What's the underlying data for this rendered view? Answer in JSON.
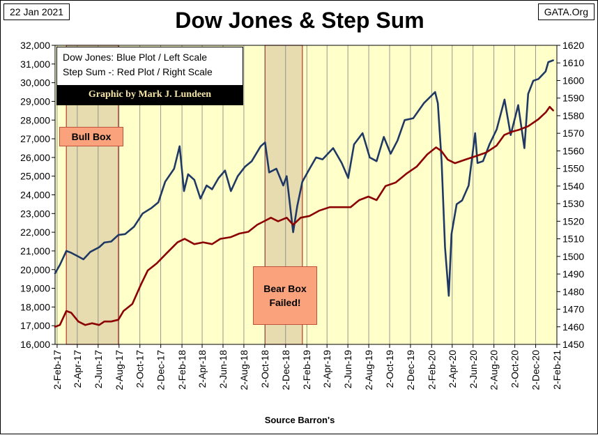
{
  "header": {
    "date": "22 Jan 2021",
    "site": "GATA.Org",
    "title": "Dow Jones & Step Sum"
  },
  "legend": {
    "line1": "Dow Jones: Blue Plot / Left Scale",
    "line2": "Step Sum -: Red Plot / Right Scale",
    "credit": "Graphic by Mark J. Lundeen"
  },
  "annotations": {
    "bull_box": "Bull Box",
    "bear_box_line1": "Bear Box",
    "bear_box_line2": "Failed!"
  },
  "footer": {
    "source": "Source Barron's"
  },
  "colors": {
    "plot_bg": "#ffffc9",
    "box_shade": "#e6dcb0",
    "box_border": "#b53a2a",
    "dow_line": "#1f3864",
    "step_line": "#8b0000",
    "callout_fill": "#f9a27b"
  },
  "chart_data": {
    "type": "line",
    "title": "Dow Jones & Step Sum",
    "xlabel": "Source Barron's",
    "x_axis": {
      "start": "2017-01-27",
      "end": "2021-02-02",
      "tick_labels": [
        "2-Feb-17",
        "2-Apr-17",
        "2-Jun-17",
        "2-Aug-17",
        "2-Oct-17",
        "2-Dec-17",
        "2-Feb-18",
        "2-Apr-18",
        "2-Jun-18",
        "2-Aug-18",
        "2-Oct-18",
        "2-Dec-18",
        "2-Feb-19",
        "2-Apr-19",
        "2-Jun-19",
        "2-Aug-19",
        "2-Oct-19",
        "2-Dec-19",
        "2-Feb-20",
        "2-Apr-20",
        "2-Jun-20",
        "2-Aug-20",
        "2-Oct-20",
        "2-Dec-20",
        "2-Feb-21"
      ],
      "tick_dates": [
        "2017-02-02",
        "2017-04-02",
        "2017-06-02",
        "2017-08-02",
        "2017-10-02",
        "2017-12-02",
        "2018-02-02",
        "2018-04-02",
        "2018-06-02",
        "2018-08-02",
        "2018-10-02",
        "2018-12-02",
        "2019-02-02",
        "2019-04-02",
        "2019-06-02",
        "2019-08-02",
        "2019-10-02",
        "2019-12-02",
        "2020-02-02",
        "2020-04-02",
        "2020-06-02",
        "2020-08-02",
        "2020-10-02",
        "2020-12-02",
        "2021-02-02"
      ]
    },
    "y_left": {
      "label": "Dow Jones",
      "min": 16000,
      "max": 32000,
      "tick_labels": [
        "16,000",
        "17,000",
        "18,000",
        "19,000",
        "20,000",
        "21,000",
        "22,000",
        "23,000",
        "24,000",
        "25,000",
        "26,000",
        "27,000",
        "28,000",
        "29,000",
        "30,000",
        "31,000",
        "32,000"
      ],
      "tick_values": [
        16000,
        17000,
        18000,
        19000,
        20000,
        21000,
        22000,
        23000,
        24000,
        25000,
        26000,
        27000,
        28000,
        29000,
        30000,
        31000,
        32000
      ]
    },
    "y_right": {
      "label": "Step Sum",
      "min": 1450,
      "max": 1620,
      "tick_labels": [
        "1450",
        "1460",
        "1470",
        "1480",
        "1490",
        "1500",
        "1510",
        "1520",
        "1530",
        "1540",
        "1550",
        "1560",
        "1570",
        "1580",
        "1590",
        "1600",
        "1610",
        "1620"
      ],
      "tick_values": [
        1450,
        1460,
        1470,
        1480,
        1490,
        1500,
        1510,
        1520,
        1530,
        1540,
        1550,
        1560,
        1570,
        1580,
        1590,
        1600,
        1610,
        1620
      ]
    },
    "shaded_boxes": [
      {
        "name": "Bull Box",
        "start": "2017-03-01",
        "end": "2017-07-31"
      },
      {
        "name": "Bear Box",
        "start": "2018-10-03",
        "end": "2019-01-20"
      }
    ],
    "series": [
      {
        "name": "Dow Jones",
        "axis": "left",
        "points": [
          [
            "2017-01-27",
            19800
          ],
          [
            "2017-02-10",
            20250
          ],
          [
            "2017-03-01",
            21000
          ],
          [
            "2017-03-15",
            20900
          ],
          [
            "2017-04-05",
            20700
          ],
          [
            "2017-04-20",
            20550
          ],
          [
            "2017-05-10",
            20950
          ],
          [
            "2017-06-05",
            21200
          ],
          [
            "2017-06-20",
            21450
          ],
          [
            "2017-07-10",
            21500
          ],
          [
            "2017-07-31",
            21850
          ],
          [
            "2017-08-20",
            21900
          ],
          [
            "2017-09-15",
            22300
          ],
          [
            "2017-10-10",
            23000
          ],
          [
            "2017-11-05",
            23300
          ],
          [
            "2017-11-25",
            23600
          ],
          [
            "2017-12-15",
            24700
          ],
          [
            "2018-01-10",
            25400
          ],
          [
            "2018-01-26",
            26600
          ],
          [
            "2018-02-08",
            24200
          ],
          [
            "2018-02-20",
            25100
          ],
          [
            "2018-03-10",
            24800
          ],
          [
            "2018-03-28",
            23800
          ],
          [
            "2018-04-15",
            24500
          ],
          [
            "2018-05-01",
            24300
          ],
          [
            "2018-05-20",
            24900
          ],
          [
            "2018-06-08",
            25300
          ],
          [
            "2018-06-25",
            24200
          ],
          [
            "2018-07-15",
            25000
          ],
          [
            "2018-08-05",
            25500
          ],
          [
            "2018-08-25",
            25800
          ],
          [
            "2018-09-20",
            26600
          ],
          [
            "2018-10-03",
            26800
          ],
          [
            "2018-10-15",
            25200
          ],
          [
            "2018-11-05",
            25400
          ],
          [
            "2018-11-25",
            24500
          ],
          [
            "2018-12-05",
            25000
          ],
          [
            "2018-12-24",
            22000
          ],
          [
            "2019-01-05",
            23400
          ],
          [
            "2019-01-20",
            24700
          ],
          [
            "2019-02-10",
            25400
          ],
          [
            "2019-03-01",
            26000
          ],
          [
            "2019-03-20",
            25900
          ],
          [
            "2019-04-20",
            26500
          ],
          [
            "2019-05-15",
            25700
          ],
          [
            "2019-06-03",
            24900
          ],
          [
            "2019-06-20",
            26700
          ],
          [
            "2019-07-15",
            27300
          ],
          [
            "2019-08-05",
            26000
          ],
          [
            "2019-08-25",
            25800
          ],
          [
            "2019-09-15",
            27100
          ],
          [
            "2019-10-05",
            26200
          ],
          [
            "2019-10-25",
            26900
          ],
          [
            "2019-11-15",
            28000
          ],
          [
            "2019-12-10",
            28100
          ],
          [
            "2020-01-10",
            28900
          ],
          [
            "2020-02-12",
            29500
          ],
          [
            "2020-02-20",
            28900
          ],
          [
            "2020-03-02",
            25800
          ],
          [
            "2020-03-12",
            21200
          ],
          [
            "2020-03-23",
            18600
          ],
          [
            "2020-03-31",
            21900
          ],
          [
            "2020-04-15",
            23500
          ],
          [
            "2020-05-01",
            23700
          ],
          [
            "2020-05-20",
            24500
          ],
          [
            "2020-06-08",
            27300
          ],
          [
            "2020-06-15",
            25700
          ],
          [
            "2020-07-01",
            25800
          ],
          [
            "2020-07-20",
            26700
          ],
          [
            "2020-08-10",
            27500
          ],
          [
            "2020-09-02",
            29100
          ],
          [
            "2020-09-20",
            27200
          ],
          [
            "2020-10-12",
            28800
          ],
          [
            "2020-10-30",
            26500
          ],
          [
            "2020-11-10",
            29400
          ],
          [
            "2020-11-25",
            30100
          ],
          [
            "2020-12-10",
            30200
          ],
          [
            "2020-12-31",
            30600
          ],
          [
            "2021-01-08",
            31100
          ],
          [
            "2021-01-22",
            31200
          ]
        ]
      },
      {
        "name": "Step Sum",
        "axis": "right",
        "points": [
          [
            "2017-01-27",
            1460
          ],
          [
            "2017-02-10",
            1461
          ],
          [
            "2017-03-01",
            1469
          ],
          [
            "2017-03-15",
            1468
          ],
          [
            "2017-04-05",
            1463
          ],
          [
            "2017-04-25",
            1461
          ],
          [
            "2017-05-15",
            1462
          ],
          [
            "2017-06-05",
            1461
          ],
          [
            "2017-06-20",
            1463
          ],
          [
            "2017-07-10",
            1463
          ],
          [
            "2017-07-31",
            1464
          ],
          [
            "2017-08-15",
            1469
          ],
          [
            "2017-09-10",
            1473
          ],
          [
            "2017-10-05",
            1484
          ],
          [
            "2017-10-25",
            1492
          ],
          [
            "2017-11-20",
            1496
          ],
          [
            "2017-12-20",
            1502
          ],
          [
            "2018-01-20",
            1508
          ],
          [
            "2018-02-10",
            1510
          ],
          [
            "2018-03-10",
            1507
          ],
          [
            "2018-04-05",
            1508
          ],
          [
            "2018-05-01",
            1507
          ],
          [
            "2018-05-25",
            1510
          ],
          [
            "2018-06-25",
            1511
          ],
          [
            "2018-07-20",
            1513
          ],
          [
            "2018-08-15",
            1514
          ],
          [
            "2018-09-10",
            1518
          ],
          [
            "2018-09-30",
            1520
          ],
          [
            "2018-10-20",
            1522
          ],
          [
            "2018-11-10",
            1520
          ],
          [
            "2018-12-05",
            1522
          ],
          [
            "2018-12-24",
            1518
          ],
          [
            "2019-01-15",
            1522
          ],
          [
            "2019-02-10",
            1523
          ],
          [
            "2019-03-10",
            1526
          ],
          [
            "2019-04-10",
            1528
          ],
          [
            "2019-05-10",
            1528
          ],
          [
            "2019-06-10",
            1528
          ],
          [
            "2019-07-05",
            1532
          ],
          [
            "2019-08-01",
            1534
          ],
          [
            "2019-08-25",
            1532
          ],
          [
            "2019-09-20",
            1540
          ],
          [
            "2019-10-20",
            1542
          ],
          [
            "2019-11-20",
            1547
          ],
          [
            "2019-12-20",
            1551
          ],
          [
            "2020-01-20",
            1558
          ],
          [
            "2020-02-15",
            1562
          ],
          [
            "2020-03-01",
            1560
          ],
          [
            "2020-03-20",
            1555
          ],
          [
            "2020-04-10",
            1553
          ],
          [
            "2020-05-10",
            1555
          ],
          [
            "2020-06-10",
            1557
          ],
          [
            "2020-07-10",
            1559
          ],
          [
            "2020-08-10",
            1563
          ],
          [
            "2020-09-01",
            1569
          ],
          [
            "2020-09-25",
            1571
          ],
          [
            "2020-10-15",
            1572
          ],
          [
            "2020-11-10",
            1574
          ],
          [
            "2020-12-10",
            1578
          ],
          [
            "2021-01-01",
            1582
          ],
          [
            "2021-01-12",
            1585
          ],
          [
            "2021-01-22",
            1583
          ]
        ]
      }
    ]
  }
}
